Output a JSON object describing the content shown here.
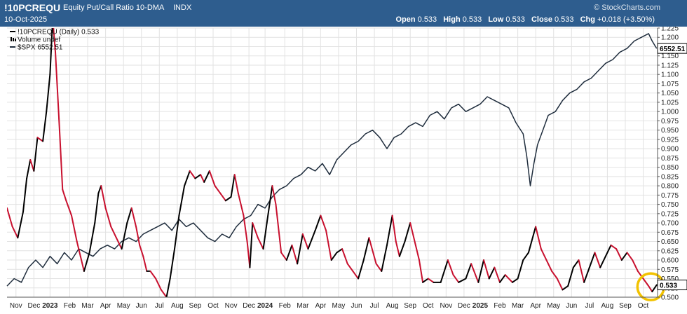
{
  "header": {
    "symbol": "!10PCREQU",
    "description": "Equity Put/Call Ratio 10-DMA",
    "exchange": "INDX",
    "date": "10-Oct-2025",
    "watermark": "© StockCharts.com",
    "ohlc": [
      {
        "label": "Open",
        "value": "0.533"
      },
      {
        "label": "High",
        "value": "0.533"
      },
      {
        "label": "Low",
        "value": "0.533"
      },
      {
        "label": "Close",
        "value": "0.533"
      },
      {
        "label": "Chg",
        "value": "+0.018 (+3.50%)"
      }
    ]
  },
  "legend": [
    {
      "text": "!10PCREQU (Daily) 0.533",
      "marker": "line",
      "color": "#000000"
    },
    {
      "text": "Volume undef",
      "marker": "bars",
      "color": "#000000"
    },
    {
      "text": "$SPX 6552.51",
      "marker": "line",
      "color": "#1f2d3d"
    }
  ],
  "colors": {
    "header_bg": "#2e5d8e",
    "rising": "#000000",
    "falling": "#c8102e",
    "spx": "#1f2d3d",
    "grid": "#e2e2e2",
    "highlight_circle": "#f2c200"
  },
  "value_tags": {
    "spx": "6552.51",
    "ratio": "0.533"
  },
  "chart_data": {
    "type": "line",
    "y_axis": {
      "position": "right",
      "ylim": [
        0.5,
        1.225
      ],
      "ticks": [
        "0.500",
        "0.525",
        "0.550",
        "0.575",
        "0.600",
        "0.625",
        "0.650",
        "0.675",
        "0.700",
        "0.725",
        "0.750",
        "0.775",
        "0.800",
        "0.825",
        "0.850",
        "0.875",
        "0.900",
        "0.925",
        "0.950",
        "0.975",
        "1.000",
        "1.025",
        "1.050",
        "1.075",
        "1.100",
        "1.125",
        "1.150",
        "1.175",
        "1.200",
        "1.225"
      ]
    },
    "x_axis": {
      "ticks": [
        {
          "label": "Nov",
          "t": 0.5
        },
        {
          "label": "Dec",
          "t": 1.5
        },
        {
          "label": "2023",
          "t": 2.4,
          "bold": true
        },
        {
          "label": "Feb",
          "t": 3.5
        },
        {
          "label": "Mar",
          "t": 4.5
        },
        {
          "label": "Apr",
          "t": 5.5
        },
        {
          "label": "May",
          "t": 6.5
        },
        {
          "label": "Jun",
          "t": 7.5
        },
        {
          "label": "Jul",
          "t": 8.5
        },
        {
          "label": "Aug",
          "t": 9.5
        },
        {
          "label": "Sep",
          "t": 10.5
        },
        {
          "label": "Oct",
          "t": 11.5
        },
        {
          "label": "Nov",
          "t": 12.5
        },
        {
          "label": "Dec",
          "t": 13.5
        },
        {
          "label": "2024",
          "t": 14.4,
          "bold": true
        },
        {
          "label": "Feb",
          "t": 15.5
        },
        {
          "label": "Mar",
          "t": 16.5
        },
        {
          "label": "Apr",
          "t": 17.5
        },
        {
          "label": "May",
          "t": 18.5
        },
        {
          "label": "Jun",
          "t": 19.5
        },
        {
          "label": "Jul",
          "t": 20.5
        },
        {
          "label": "Aug",
          "t": 21.5
        },
        {
          "label": "Sep",
          "t": 22.5
        },
        {
          "label": "Oct",
          "t": 23.5
        },
        {
          "label": "Nov",
          "t": 24.5
        },
        {
          "label": "Dec",
          "t": 25.5
        },
        {
          "label": "2025",
          "t": 26.4,
          "bold": true
        },
        {
          "label": "Feb",
          "t": 27.5
        },
        {
          "label": "Mar",
          "t": 28.5
        },
        {
          "label": "Apr",
          "t": 29.5
        },
        {
          "label": "May",
          "t": 30.5
        },
        {
          "label": "Jun",
          "t": 31.5
        },
        {
          "label": "Jul",
          "t": 32.5
        },
        {
          "label": "Aug",
          "t": 33.5
        },
        {
          "label": "Sep",
          "t": 34.5
        },
        {
          "label": "Oct",
          "t": 35.5
        }
      ],
      "tmax": 36.3
    },
    "series": [
      {
        "name": "!10PCREQU (Daily)",
        "style": "up-black-down-red",
        "points": [
          [
            0.0,
            0.74
          ],
          [
            0.3,
            0.69
          ],
          [
            0.6,
            0.66
          ],
          [
            0.9,
            0.73
          ],
          [
            1.1,
            0.82
          ],
          [
            1.3,
            0.87
          ],
          [
            1.5,
            0.84
          ],
          [
            1.7,
            0.93
          ],
          [
            2.0,
            0.92
          ],
          [
            2.2,
            1.0
          ],
          [
            2.4,
            1.1
          ],
          [
            2.55,
            1.25
          ],
          [
            2.7,
            1.16
          ],
          [
            2.9,
            0.98
          ],
          [
            3.1,
            0.79
          ],
          [
            3.3,
            0.76
          ],
          [
            3.6,
            0.72
          ],
          [
            3.9,
            0.65
          ],
          [
            4.1,
            0.61
          ],
          [
            4.3,
            0.57
          ],
          [
            4.6,
            0.62
          ],
          [
            4.9,
            0.7
          ],
          [
            5.1,
            0.78
          ],
          [
            5.25,
            0.8
          ],
          [
            5.5,
            0.74
          ],
          [
            5.8,
            0.69
          ],
          [
            6.1,
            0.66
          ],
          [
            6.4,
            0.63
          ],
          [
            6.7,
            0.7
          ],
          [
            6.95,
            0.74
          ],
          [
            7.2,
            0.69
          ],
          [
            7.4,
            0.64
          ],
          [
            7.6,
            0.61
          ],
          [
            7.8,
            0.57
          ],
          [
            8.0,
            0.57
          ],
          [
            8.3,
            0.55
          ],
          [
            8.6,
            0.52
          ],
          [
            8.9,
            0.5
          ],
          [
            9.1,
            0.55
          ],
          [
            9.35,
            0.63
          ],
          [
            9.6,
            0.72
          ],
          [
            9.9,
            0.8
          ],
          [
            10.2,
            0.84
          ],
          [
            10.5,
            0.82
          ],
          [
            10.8,
            0.83
          ],
          [
            11.0,
            0.81
          ],
          [
            11.3,
            0.84
          ],
          [
            11.6,
            0.8
          ],
          [
            11.9,
            0.78
          ],
          [
            12.2,
            0.76
          ],
          [
            12.5,
            0.77
          ],
          [
            12.7,
            0.83
          ],
          [
            12.9,
            0.78
          ],
          [
            13.2,
            0.72
          ],
          [
            13.4,
            0.65
          ],
          [
            13.55,
            0.58
          ],
          [
            13.7,
            0.7
          ],
          [
            14.0,
            0.66
          ],
          [
            14.3,
            0.63
          ],
          [
            14.5,
            0.7
          ],
          [
            14.8,
            0.8
          ],
          [
            15.0,
            0.75
          ],
          [
            15.3,
            0.62
          ],
          [
            15.6,
            0.6
          ],
          [
            15.9,
            0.64
          ],
          [
            16.2,
            0.59
          ],
          [
            16.5,
            0.67
          ],
          [
            16.8,
            0.63
          ],
          [
            17.2,
            0.68
          ],
          [
            17.5,
            0.72
          ],
          [
            17.8,
            0.68
          ],
          [
            18.1,
            0.6
          ],
          [
            18.4,
            0.62
          ],
          [
            18.7,
            0.63
          ],
          [
            19.0,
            0.59
          ],
          [
            19.3,
            0.57
          ],
          [
            19.6,
            0.55
          ],
          [
            19.9,
            0.6
          ],
          [
            20.2,
            0.66
          ],
          [
            20.6,
            0.59
          ],
          [
            20.9,
            0.57
          ],
          [
            21.2,
            0.64
          ],
          [
            21.5,
            0.72
          ],
          [
            21.7,
            0.65
          ],
          [
            21.9,
            0.61
          ],
          [
            22.2,
            0.65
          ],
          [
            22.5,
            0.7
          ],
          [
            22.8,
            0.64
          ],
          [
            23.0,
            0.6
          ],
          [
            23.2,
            0.54
          ],
          [
            23.5,
            0.55
          ],
          [
            23.8,
            0.54
          ],
          [
            24.2,
            0.54
          ],
          [
            24.6,
            0.6
          ],
          [
            24.9,
            0.56
          ],
          [
            25.2,
            0.54
          ],
          [
            25.6,
            0.55
          ],
          [
            25.9,
            0.59
          ],
          [
            26.3,
            0.54
          ],
          [
            26.6,
            0.6
          ],
          [
            26.9,
            0.55
          ],
          [
            27.2,
            0.58
          ],
          [
            27.5,
            0.54
          ],
          [
            27.8,
            0.56
          ],
          [
            28.2,
            0.54
          ],
          [
            28.5,
            0.55
          ],
          [
            28.8,
            0.6
          ],
          [
            29.1,
            0.62
          ],
          [
            29.5,
            0.69
          ],
          [
            29.8,
            0.63
          ],
          [
            30.1,
            0.6
          ],
          [
            30.4,
            0.57
          ],
          [
            30.7,
            0.55
          ],
          [
            31.0,
            0.52
          ],
          [
            31.3,
            0.53
          ],
          [
            31.6,
            0.58
          ],
          [
            31.9,
            0.6
          ],
          [
            32.2,
            0.54
          ],
          [
            32.5,
            0.58
          ],
          [
            32.8,
            0.62
          ],
          [
            33.1,
            0.58
          ],
          [
            33.4,
            0.61
          ],
          [
            33.7,
            0.64
          ],
          [
            34.0,
            0.63
          ],
          [
            34.3,
            0.6
          ],
          [
            34.6,
            0.62
          ],
          [
            34.9,
            0.6
          ],
          [
            35.2,
            0.57
          ],
          [
            35.5,
            0.55
          ],
          [
            35.8,
            0.53
          ],
          [
            36.0,
            0.515
          ],
          [
            36.25,
            0.533
          ]
        ]
      },
      {
        "name": "$SPX",
        "style": "line",
        "points": [
          [
            0.0,
            0.53
          ],
          [
            0.4,
            0.55
          ],
          [
            0.8,
            0.54
          ],
          [
            1.2,
            0.58
          ],
          [
            1.6,
            0.6
          ],
          [
            2.0,
            0.58
          ],
          [
            2.4,
            0.61
          ],
          [
            2.8,
            0.59
          ],
          [
            3.2,
            0.62
          ],
          [
            3.6,
            0.6
          ],
          [
            4.0,
            0.63
          ],
          [
            4.4,
            0.62
          ],
          [
            4.8,
            0.61
          ],
          [
            5.2,
            0.63
          ],
          [
            5.6,
            0.64
          ],
          [
            6.0,
            0.63
          ],
          [
            6.4,
            0.65
          ],
          [
            6.8,
            0.66
          ],
          [
            7.2,
            0.65
          ],
          [
            7.6,
            0.67
          ],
          [
            8.0,
            0.68
          ],
          [
            8.4,
            0.69
          ],
          [
            8.8,
            0.7
          ],
          [
            9.2,
            0.68
          ],
          [
            9.6,
            0.71
          ],
          [
            10.0,
            0.69
          ],
          [
            10.4,
            0.7
          ],
          [
            10.8,
            0.68
          ],
          [
            11.2,
            0.66
          ],
          [
            11.6,
            0.65
          ],
          [
            12.0,
            0.67
          ],
          [
            12.4,
            0.66
          ],
          [
            12.8,
            0.69
          ],
          [
            13.2,
            0.71
          ],
          [
            13.6,
            0.72
          ],
          [
            14.0,
            0.75
          ],
          [
            14.4,
            0.74
          ],
          [
            14.8,
            0.77
          ],
          [
            15.2,
            0.79
          ],
          [
            15.6,
            0.8
          ],
          [
            16.0,
            0.82
          ],
          [
            16.4,
            0.83
          ],
          [
            16.8,
            0.85
          ],
          [
            17.2,
            0.84
          ],
          [
            17.6,
            0.86
          ],
          [
            18.0,
            0.83
          ],
          [
            18.4,
            0.87
          ],
          [
            18.8,
            0.89
          ],
          [
            19.2,
            0.91
          ],
          [
            19.6,
            0.92
          ],
          [
            20.0,
            0.94
          ],
          [
            20.4,
            0.95
          ],
          [
            20.8,
            0.93
          ],
          [
            21.2,
            0.9
          ],
          [
            21.6,
            0.93
          ],
          [
            22.0,
            0.94
          ],
          [
            22.4,
            0.96
          ],
          [
            22.8,
            0.97
          ],
          [
            23.2,
            0.96
          ],
          [
            23.6,
            0.99
          ],
          [
            24.0,
            1.0
          ],
          [
            24.4,
            0.98
          ],
          [
            24.8,
            1.01
          ],
          [
            25.2,
            1.02
          ],
          [
            25.6,
            1.0
          ],
          [
            26.0,
            1.01
          ],
          [
            26.4,
            1.02
          ],
          [
            26.8,
            1.04
          ],
          [
            27.2,
            1.03
          ],
          [
            27.6,
            1.02
          ],
          [
            28.0,
            1.01
          ],
          [
            28.4,
            0.97
          ],
          [
            28.8,
            0.94
          ],
          [
            29.0,
            0.88
          ],
          [
            29.2,
            0.8
          ],
          [
            29.4,
            0.86
          ],
          [
            29.6,
            0.91
          ],
          [
            29.9,
            0.95
          ],
          [
            30.2,
            0.99
          ],
          [
            30.6,
            1.0
          ],
          [
            31.0,
            1.03
          ],
          [
            31.4,
            1.05
          ],
          [
            31.8,
            1.06
          ],
          [
            32.2,
            1.08
          ],
          [
            32.6,
            1.09
          ],
          [
            33.0,
            1.11
          ],
          [
            33.4,
            1.13
          ],
          [
            33.8,
            1.14
          ],
          [
            34.2,
            1.16
          ],
          [
            34.6,
            1.17
          ],
          [
            35.0,
            1.19
          ],
          [
            35.4,
            1.2
          ],
          [
            35.8,
            1.21
          ],
          [
            36.0,
            1.19
          ],
          [
            36.25,
            1.17
          ]
        ]
      }
    ],
    "annotations": [
      {
        "type": "circle",
        "t": 35.92,
        "y": 0.528,
        "color": "#f2c200"
      }
    ]
  }
}
